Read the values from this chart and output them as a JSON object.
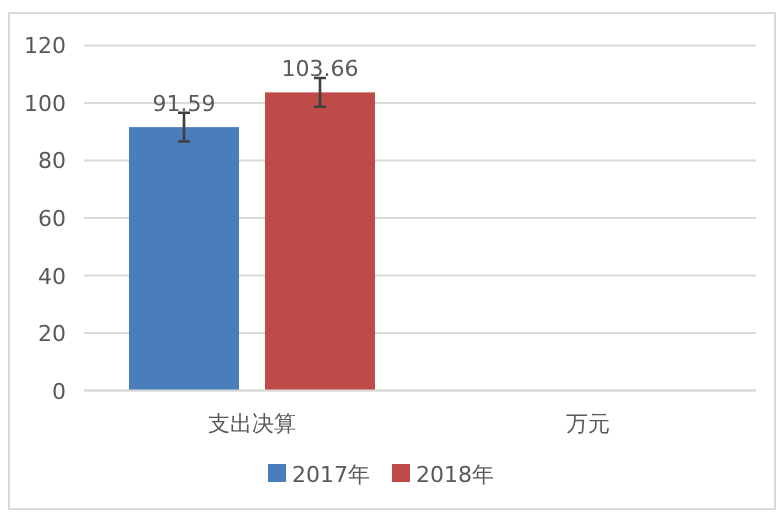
{
  "chart_data": {
    "type": "bar",
    "categories": [
      "支出决算",
      "万元"
    ],
    "series": [
      {
        "name": "2017年",
        "color": "#4a7ebb",
        "values": [
          91.59,
          null
        ],
        "errors": [
          5,
          null
        ]
      },
      {
        "name": "2018年",
        "color": "#be4b48",
        "values": [
          103.66,
          null
        ],
        "errors": [
          5,
          null
        ]
      }
    ],
    "ylim": [
      0,
      120
    ],
    "yticks": [
      0,
      20,
      40,
      60,
      80,
      100,
      120
    ],
    "grid": "y",
    "legend": "bottom",
    "data_labels": true
  }
}
